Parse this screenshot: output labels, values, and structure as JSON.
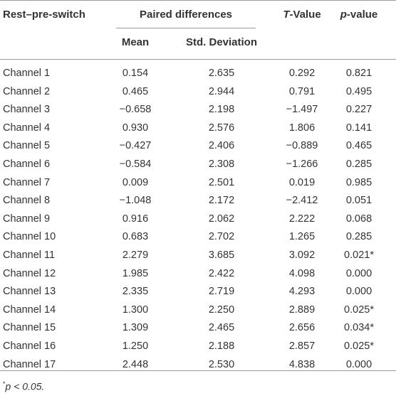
{
  "table": {
    "headers": {
      "col1": "Rest–pre-switch",
      "group": "Paired differences",
      "mean": "Mean",
      "sd": "Std. Deviation",
      "t_prefix": "T",
      "t_suffix": "-Value",
      "p_prefix": "p",
      "p_suffix": "-value"
    },
    "rows": [
      {
        "channel": "Channel 1",
        "mean": "0.154",
        "sd": "2.635",
        "t": "0.292",
        "p": "0.821"
      },
      {
        "channel": "Channel 2",
        "mean": "0.465",
        "sd": "2.944",
        "t": "0.791",
        "p": "0.495"
      },
      {
        "channel": "Channel 3",
        "mean": "−0.658",
        "sd": "2.198",
        "t": "−1.497",
        "p": "0.227"
      },
      {
        "channel": "Channel 4",
        "mean": "0.930",
        "sd": "2.576",
        "t": "1.806",
        "p": "0.141"
      },
      {
        "channel": "Channel 5",
        "mean": "−0.427",
        "sd": "2.406",
        "t": "−0.889",
        "p": "0.465"
      },
      {
        "channel": "Channel 6",
        "mean": "−0.584",
        "sd": "2.308",
        "t": "−1.266",
        "p": "0.285"
      },
      {
        "channel": "Channel 7",
        "mean": "0.009",
        "sd": "2.501",
        "t": "0.019",
        "p": "0.985"
      },
      {
        "channel": "Channel 8",
        "mean": "−1.048",
        "sd": "2.172",
        "t": "−2.412",
        "p": "0.051"
      },
      {
        "channel": "Channel 9",
        "mean": "0.916",
        "sd": "2.062",
        "t": "2.222",
        "p": "0.068"
      },
      {
        "channel": "Channel 10",
        "mean": "0.683",
        "sd": "2.702",
        "t": "1.265",
        "p": "0.285"
      },
      {
        "channel": "Channel 11",
        "mean": "2.279",
        "sd": "3.685",
        "t": "3.092",
        "p": "0.021*"
      },
      {
        "channel": "Channel 12",
        "mean": "1.985",
        "sd": "2.422",
        "t": "4.098",
        "p": "0.000"
      },
      {
        "channel": "Channel 13",
        "mean": "2.335",
        "sd": "2.719",
        "t": "4.293",
        "p": "0.000"
      },
      {
        "channel": "Channel 14",
        "mean": "1.300",
        "sd": "2.250",
        "t": "2.889",
        "p": "0.025*"
      },
      {
        "channel": "Channel 15",
        "mean": "1.309",
        "sd": "2.465",
        "t": "2.656",
        "p": "0.034*"
      },
      {
        "channel": "Channel 16",
        "mean": "1.250",
        "sd": "2.188",
        "t": "2.857",
        "p": "0.025*"
      },
      {
        "channel": "Channel 17",
        "mean": "2.448",
        "sd": "2.530",
        "t": "4.838",
        "p": "0.000"
      }
    ]
  },
  "footnote": {
    "star": "*",
    "text": "p < 0.05."
  }
}
